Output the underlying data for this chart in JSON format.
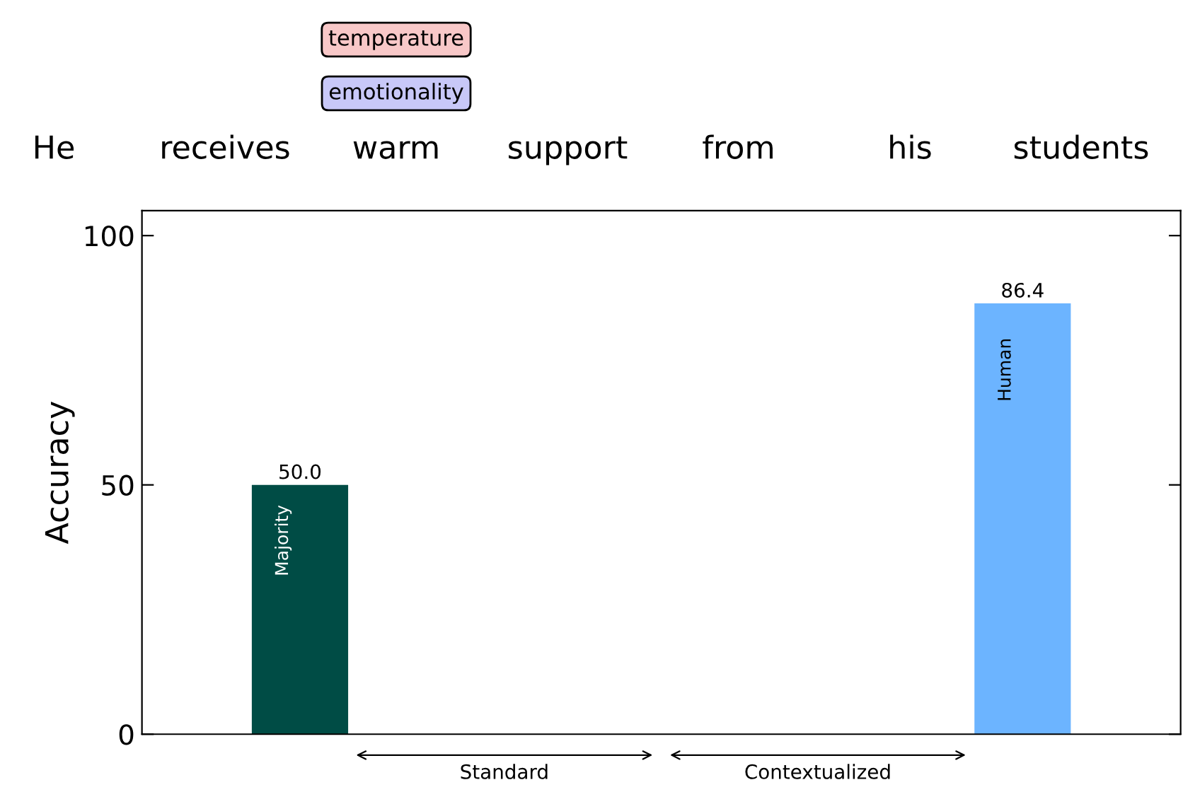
{
  "chart_data": {
    "type": "bar",
    "ylabel": "Accuracy",
    "categories": [
      null,
      null,
      null,
      null
    ],
    "series": [
      {
        "name": "Majority",
        "color": "#004c45",
        "values": [
          50.0,
          null,
          null,
          null
        ],
        "value_labels": [
          "50.0",
          null,
          null,
          null
        ]
      },
      {
        "name": "Human",
        "color": "#6cb4ff",
        "values": [
          null,
          null,
          null,
          86.4
        ],
        "value_labels": [
          null,
          null,
          null,
          "86.4"
        ]
      }
    ],
    "ylim": [
      0,
      105
    ],
    "yticks": [
      0,
      50,
      100
    ],
    "grid": false,
    "legend": false,
    "annotations": [
      "He receives warm support from his students",
      "temperature",
      "emotionality",
      "Standard",
      "Contextualized"
    ]
  }
}
